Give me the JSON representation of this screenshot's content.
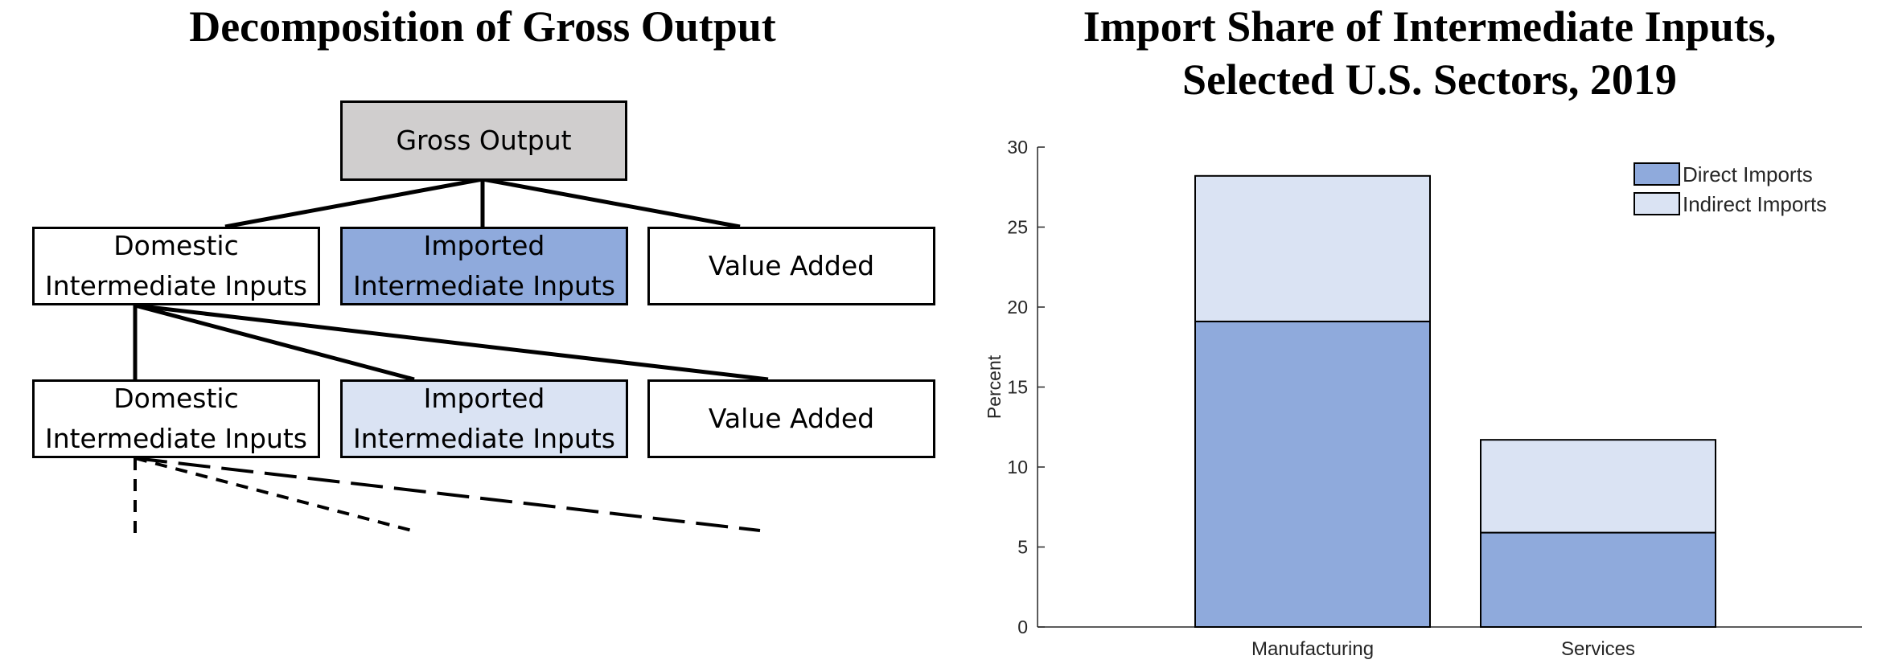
{
  "diagram": {
    "title": "Decomposition of Gross Output",
    "root": {
      "label": "Gross Output",
      "color": "#d0cece"
    },
    "level1": [
      {
        "label": "Domestic\nIntermediate Inputs",
        "color": "#ffffff"
      },
      {
        "label": "Imported\nIntermediate Inputs",
        "color": "#8faadc"
      },
      {
        "label": "Value Added",
        "color": "#ffffff"
      }
    ],
    "level2": [
      {
        "label": "Domestic\nIntermediate Inputs",
        "color": "#ffffff"
      },
      {
        "label": "Imported\nIntermediate Inputs",
        "color": "#dae3f3"
      },
      {
        "label": "Value Added",
        "color": "#ffffff"
      }
    ]
  },
  "chart_data": {
    "type": "bar",
    "stacked": true,
    "title": "Import Share of Intermediate Inputs,\nSelected U.S. Sectors, 2019",
    "xlabel": "",
    "ylabel": "Percent",
    "ylim": [
      0,
      30
    ],
    "yticks": [
      0,
      5,
      10,
      15,
      20,
      25,
      30
    ],
    "categories": [
      "Manufacturing",
      "Services"
    ],
    "series": [
      {
        "name": "Direct Imports",
        "values": [
          19.1,
          5.9
        ],
        "color": "#8faadc"
      },
      {
        "name": "Indirect Imports",
        "values": [
          9.1,
          5.8
        ],
        "color": "#dae3f3"
      }
    ],
    "legend": "top-right",
    "grid": false
  }
}
